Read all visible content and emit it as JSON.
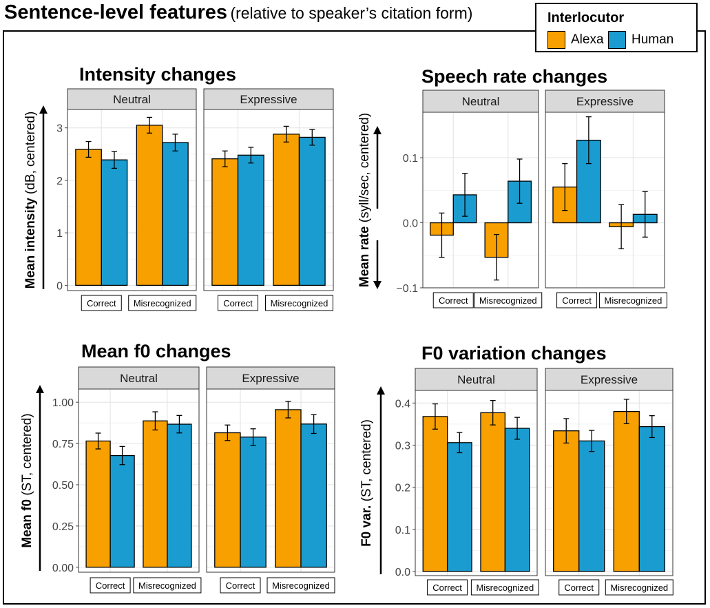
{
  "header": {
    "title_bold": "Sentence-level features",
    "title_sub": "(relative to speaker’s citation form)"
  },
  "legend": {
    "title": "Interlocutor",
    "items": [
      {
        "label": "Alexa",
        "color": "#F7A000"
      },
      {
        "label": "Human",
        "color": "#1B9CD0"
      }
    ]
  },
  "chart_data": [
    {
      "type": "bar",
      "title": "Intensity changes",
      "ylabel_bold": "Mean intensity",
      "ylabel_sub": "(dB, centered)",
      "facets": [
        "Neutral",
        "Expressive"
      ],
      "categories": [
        "Correct",
        "Misrecognized"
      ],
      "ylim": [
        -0.1,
        3.35
      ],
      "yticks": [
        0,
        1,
        2,
        3
      ],
      "ytick_labels": [
        "0",
        "1",
        "2",
        "3"
      ],
      "series": [
        {
          "name": "Alexa",
          "values": [
            [
              2.59,
              3.05
            ],
            [
              2.41,
              2.88
            ]
          ],
          "err": [
            [
              0.15,
              0.15
            ],
            [
              0.15,
              0.15
            ]
          ]
        },
        {
          "name": "Human",
          "values": [
            [
              2.39,
              2.72
            ],
            [
              2.48,
              2.82
            ]
          ],
          "err": [
            [
              0.16,
              0.16
            ],
            [
              0.15,
              0.15
            ]
          ]
        }
      ]
    },
    {
      "type": "bar",
      "title": "Speech rate changes",
      "ylabel_bold": "Mean rate",
      "ylabel_sub": "(syll/sec, centered)",
      "arrow": "both",
      "facets": [
        "Neutral",
        "Expressive"
      ],
      "categories": [
        "Correct",
        "Misrecognized"
      ],
      "ylim": [
        -0.1,
        0.17
      ],
      "yticks": [
        -0.1,
        0.0,
        0.1
      ],
      "ytick_labels": [
        "−0.1",
        "0.0",
        "0.1"
      ],
      "series": [
        {
          "name": "Alexa",
          "values": [
            [
              -0.019,
              -0.053
            ],
            [
              0.055,
              -0.006
            ]
          ],
          "err": [
            [
              0.034,
              0.035
            ],
            [
              0.036,
              0.034
            ]
          ]
        },
        {
          "name": "Human",
          "values": [
            [
              0.043,
              0.064
            ],
            [
              0.127,
              0.013
            ]
          ],
          "err": [
            [
              0.033,
              0.034
            ],
            [
              0.036,
              0.035
            ]
          ]
        }
      ]
    },
    {
      "type": "bar",
      "title": "Mean f0 changes",
      "ylabel_bold": "Mean f0",
      "ylabel_sub": "(ST, centered)",
      "facets": [
        "Neutral",
        "Expressive"
      ],
      "categories": [
        "Correct",
        "Misrecognized"
      ],
      "ylim": [
        -0.03,
        1.08
      ],
      "yticks": [
        0,
        0.25,
        0.5,
        0.75,
        1.0
      ],
      "ytick_labels": [
        "0.00",
        "0.25",
        "0.50",
        "0.75",
        "1.00"
      ],
      "series": [
        {
          "name": "Alexa",
          "values": [
            [
              0.765,
              0.887
            ],
            [
              0.815,
              0.955
            ]
          ],
          "err": [
            [
              0.048,
              0.055
            ],
            [
              0.047,
              0.05
            ]
          ]
        },
        {
          "name": "Human",
          "values": [
            [
              0.677,
              0.867
            ],
            [
              0.789,
              0.868
            ]
          ],
          "err": [
            [
              0.055,
              0.053
            ],
            [
              0.05,
              0.057
            ]
          ]
        }
      ]
    },
    {
      "type": "bar",
      "title": "F0 variation changes",
      "ylabel_bold": "F0 var.",
      "ylabel_sub": "(ST, centered)",
      "facets": [
        "Neutral",
        "Expressive"
      ],
      "categories": [
        "Correct",
        "Misrecognized"
      ],
      "ylim": [
        -0.01,
        0.43
      ],
      "yticks": [
        0,
        0.1,
        0.2,
        0.3,
        0.4
      ],
      "ytick_labels": [
        "0.0",
        "0.1",
        "0.2",
        "0.3",
        "0.4"
      ],
      "series": [
        {
          "name": "Alexa",
          "values": [
            [
              0.368,
              0.377
            ],
            [
              0.334,
              0.38
            ]
          ],
          "err": [
            [
              0.03,
              0.029
            ],
            [
              0.029,
              0.029
            ]
          ]
        },
        {
          "name": "Human",
          "values": [
            [
              0.306,
              0.34
            ],
            [
              0.31,
              0.344
            ]
          ],
          "err": [
            [
              0.024,
              0.026
            ],
            [
              0.025,
              0.026
            ]
          ]
        }
      ]
    }
  ]
}
